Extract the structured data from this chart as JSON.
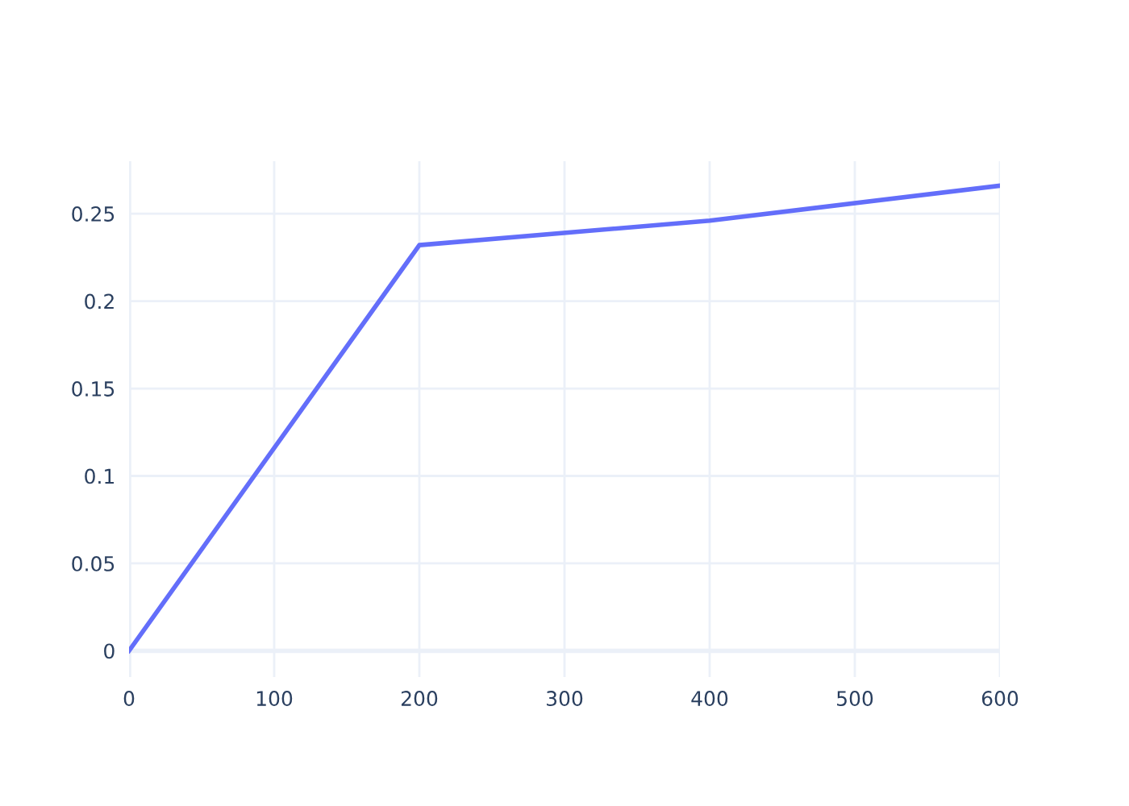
{
  "chart_data": {
    "type": "line",
    "x": [
      0,
      200,
      400,
      600
    ],
    "series": [
      {
        "color": "#636efa",
        "values": [
          0,
          0.232,
          0.246,
          0.266
        ]
      }
    ],
    "xlim": [
      0,
      600
    ],
    "ylim": [
      -0.015,
      0.28
    ],
    "xticks": [
      0,
      100,
      200,
      300,
      400,
      500,
      600
    ],
    "yticks": [
      0,
      0.05,
      0.1,
      0.15,
      0.2,
      0.25
    ],
    "grid": true,
    "marker": "none",
    "line_style": "solid"
  }
}
